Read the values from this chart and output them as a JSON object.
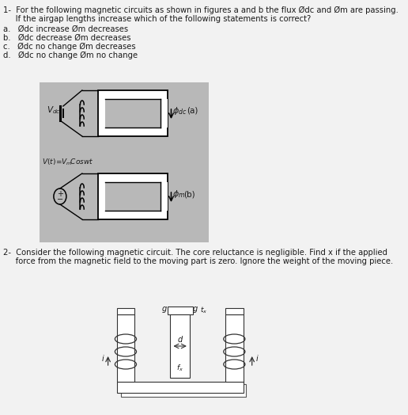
{
  "title_q1_a": "1-  For the following magnetic circuits as shown in figures a and b the flux Ø",
  "title_q1_b": "dc",
  "title_q1_c": " and Ø",
  "title_q1_d": "m",
  "title_q1_e": " are passing.",
  "title_q1_line2": "     If the airgap lengths increase which of the following statements is correct?",
  "opt_a": "a.   Ødc increase Øm decreases",
  "opt_b": "b.   Ødc decrease Øm decreases",
  "opt_c": "c.   Ødc no change Øm decreases",
  "opt_d": "d.   Ødc no change Øm no change",
  "title_q2_line1": "2-  Consider the following magnetic circuit. The core reluctance is negligible. Find x if the applied",
  "title_q2_line2": "     force from the magnetic field to the moving part is zero. Ignore the weight of the moving piece.",
  "bg_color": "#f2f2f2",
  "diagram_bg": "#b8b8b8",
  "text_color": "#1a1a1a",
  "font_size": 7.2
}
